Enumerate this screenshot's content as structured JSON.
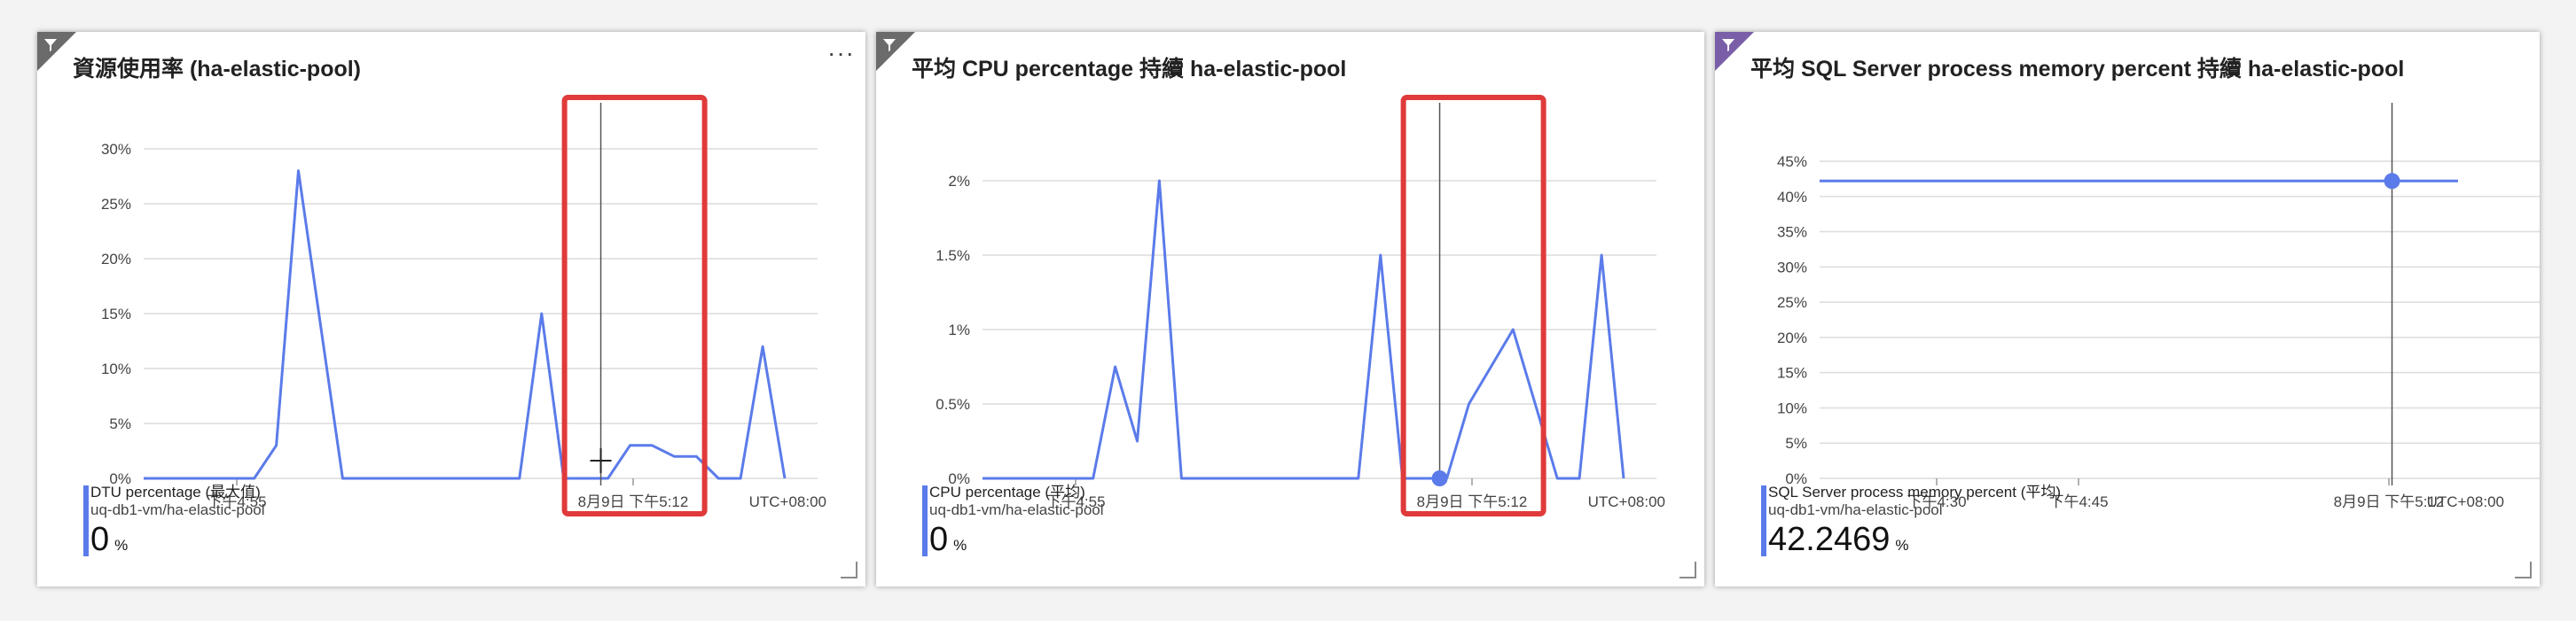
{
  "colors": {
    "series": "#5b7bea",
    "highlight": "#e03a3a",
    "grid": "#dcdcdc",
    "cursor": "#555555"
  },
  "tiles": [
    {
      "title": "資源使用率 (ha-elastic-pool)",
      "icons": [
        "filter-icon",
        "more-icon",
        "resize-icon"
      ],
      "more_label": "···",
      "legend": {
        "name": "DTU percentage (最大值)",
        "resource": "uq-db1-vm/ha-elastic-pool",
        "value": "0",
        "unit": "%"
      },
      "chart_data": {
        "type": "line",
        "y_ticks": [
          "30%",
          "25%",
          "20%",
          "15%",
          "10%",
          "5%",
          "0%"
        ],
        "ylim": [
          0,
          30
        ],
        "x_ticks": [
          "下午4:55",
          "8月9日 下午5:12",
          "UTC+08:00"
        ],
        "series": [
          {
            "values": [
              0,
              0,
              0,
              0,
              0,
              0,
              3,
              28,
              14,
              0,
              0,
              0,
              0,
              0,
              0,
              0,
              0,
              0,
              15,
              0,
              0,
              0,
              3,
              3,
              2,
              2,
              0,
              0,
              12,
              0
            ]
          }
        ],
        "cursor_index": 21,
        "highlight_index_range": [
          20,
          27
        ]
      }
    },
    {
      "title": "平均 CPU percentage 持續 ha-elastic-pool",
      "icons": [
        "filter-icon",
        "resize-icon"
      ],
      "legend": {
        "name": "CPU percentage (平均)",
        "resource": "uq-db1-vm/ha-elastic-pool",
        "value": "0",
        "unit": "%"
      },
      "chart_data": {
        "type": "line",
        "y_ticks": [
          "2%",
          "1.5%",
          "1%",
          "0.5%",
          "0%"
        ],
        "ylim": [
          0,
          2
        ],
        "x_ticks": [
          "下午4:55",
          "8月9日 下午5:12",
          "UTC+08:00"
        ],
        "series": [
          {
            "values": [
              0,
              0,
              0,
              0,
              0,
              0,
              0.75,
              0.25,
              2,
              0,
              0,
              0,
              0,
              0,
              0,
              0,
              0,
              0,
              1.5,
              0,
              0,
              0,
              0.5,
              0.75,
              1,
              0.5,
              0,
              0,
              1.5,
              0
            ]
          }
        ],
        "cursor_index": 21,
        "highlight_index_range": [
          20,
          27
        ]
      }
    },
    {
      "title": "平均 SQL Server process memory percent 持續 ha-elastic-pool",
      "icons": [
        "filter-icon",
        "resize-icon"
      ],
      "legend": {
        "name": "SQL Server process memory percent (平均)",
        "resource": "uq-db1-vm/ha-elastic-pool",
        "value": "42.2469",
        "unit": "%"
      },
      "chart_data": {
        "type": "line",
        "y_ticks": [
          "45%",
          "40%",
          "35%",
          "30%",
          "25%",
          "20%",
          "15%",
          "10%",
          "5%",
          "0%"
        ],
        "ylim": [
          0,
          45
        ],
        "x_ticks": [
          "下午4:30",
          "下午4:45",
          "8月9日 下午5:12",
          "UTC+08:00"
        ],
        "series": [
          {
            "values": [
              42.2,
              42.2,
              42.2,
              42.2,
              42.2,
              42.2,
              42.2,
              42.2,
              42.2,
              42.2,
              42.2,
              42.2,
              42.2,
              42.2,
              42.2,
              42.2,
              42.2,
              42.2,
              42.2,
              42.2,
              42.2,
              42.2,
              42.2,
              42.2,
              42.2,
              42.2,
              42.2,
              42.2,
              42.2,
              42.2
            ]
          }
        ],
        "cursor_index": 26
      }
    }
  ]
}
